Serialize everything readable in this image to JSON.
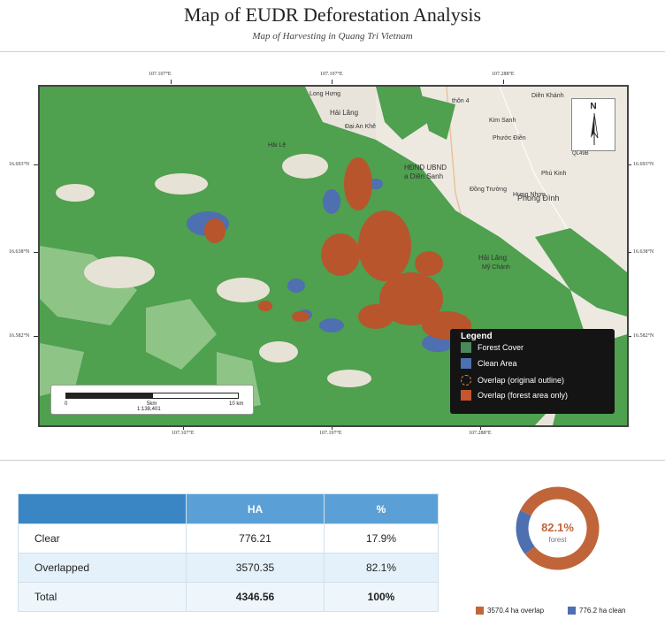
{
  "title": "Map of EUDR Deforestation Analysis",
  "subtitle": "Map of Harvesting in Quang Tri Vietnam",
  "map": {
    "top_coords": [
      "107.107°E",
      "107.197°E",
      "107.288°E"
    ],
    "bottom_coords": [
      "107.107°E",
      "107.197°E",
      "107.288°E"
    ],
    "left_coords": [
      "16.693°N",
      "16.638°N",
      "16.582°N"
    ],
    "right_coords": [
      "16.693°N",
      "16.638°N",
      "16.582°N"
    ],
    "north_label": "N",
    "scale": {
      "start": "0",
      "mid": "5km",
      "end": "10 km",
      "ratio": "1:138,401"
    },
    "place_labels": [
      "Long Hưng",
      "Hải Lăng",
      "Đại An Khê",
      "Hải Lệ",
      "thôn 4",
      "Kim Sanh",
      "Phước Điền",
      "HĐND UBND",
      "a Diên Sanh",
      "Đồng Trường",
      "Hưng Nhơn",
      "Phong Đình",
      "Hải Lăng",
      "Mỹ Chánh",
      "Phú Kinh",
      "Diên Khánh",
      "QL49B"
    ],
    "colors": {
      "forest": "#4fa04f",
      "clean": "#4e6fb0",
      "overlap": "#b8552d",
      "base": "#e8e4dc"
    }
  },
  "legend": {
    "title": "Legend",
    "items": [
      {
        "label": "Forest Cover",
        "color": "#4a8a5a"
      },
      {
        "label": "Clean Area",
        "color": "#4e6fb0"
      },
      {
        "label": "Overlap (original outline)",
        "color": "dashed"
      },
      {
        "label": "Overlap (forest area only)",
        "color": "#c4552d"
      }
    ]
  },
  "table": {
    "headers": [
      "",
      "HA",
      "%"
    ],
    "rows": [
      {
        "label": "Clear",
        "ha": "776.21",
        "pct": "17.9%"
      },
      {
        "label": "Overlapped",
        "ha": "3570.35",
        "pct": "82.1%"
      },
      {
        "label": "Total",
        "ha": "4346.56",
        "pct": "100%"
      }
    ]
  },
  "chart_data": {
    "type": "pie",
    "categories": [
      "overlap",
      "clean"
    ],
    "values": [
      3570.4,
      776.2
    ],
    "colors": [
      "#c0653a",
      "#4e6fb0"
    ],
    "center_value": "82.1%",
    "center_label": "forest",
    "legend": [
      "3570.4 ha overlap",
      "776.2 ha clean"
    ]
  }
}
